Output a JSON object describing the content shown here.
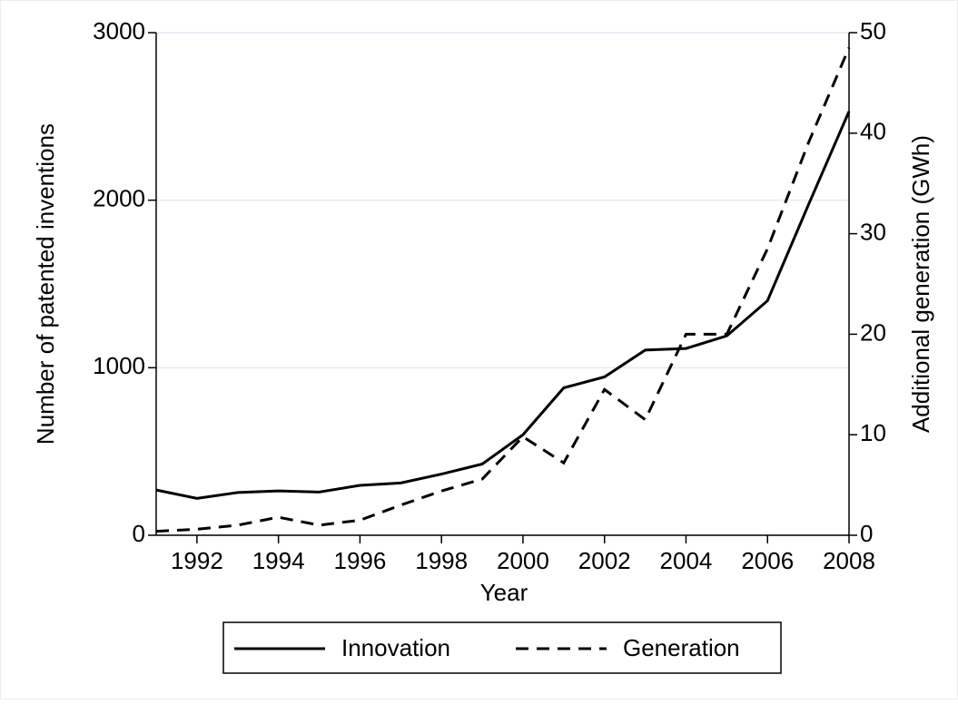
{
  "chart_data": {
    "type": "line",
    "x_label": "Year",
    "y_label": "Number of patented inventions",
    "y2_label": "Additional generation (GWh)",
    "x": [
      1991,
      1992,
      1993,
      1994,
      1995,
      1996,
      1997,
      1998,
      1999,
      2000,
      2001,
      2002,
      2003,
      2004,
      2005,
      2006,
      2007,
      2008
    ],
    "xlim": [
      1991,
      2008
    ],
    "xticks": [
      1992,
      1994,
      1996,
      1998,
      2000,
      2002,
      2004,
      2006,
      2008
    ],
    "ylim": [
      0,
      3000
    ],
    "yticks": [
      0,
      1000,
      2000,
      3000
    ],
    "y2lim": [
      0,
      50
    ],
    "y2ticks": [
      0,
      10,
      20,
      30,
      40,
      50
    ],
    "grid": true,
    "legend": "bottom",
    "series": [
      {
        "name": "Innovation",
        "color": "#000000",
        "line_style": "solid",
        "values": [
          270,
          220,
          255,
          265,
          258,
          298,
          312,
          365,
          425,
          600,
          880,
          945,
          1105,
          1115,
          1190,
          1400,
          1970,
          2530
        ]
      },
      {
        "name": "Generation",
        "color": "#000000",
        "line_style": "dashed",
        "axis": "y2",
        "values": [
          0.4,
          0.6,
          1.0,
          1.8,
          1.0,
          1.5,
          3.0,
          4.4,
          5.6,
          9.8,
          7.2,
          14.5,
          11.5,
          20,
          20,
          28.5,
          39,
          48.5
        ]
      }
    ]
  }
}
